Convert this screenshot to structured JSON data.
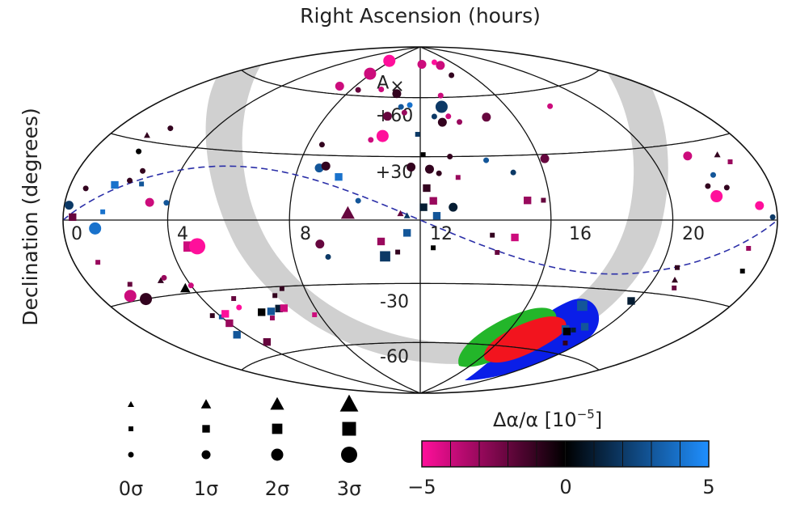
{
  "chart_data": {
    "type": "scatter",
    "projection": "aitoff-hammer (full sky)",
    "title": "Right Ascension (hours)",
    "xlabel": "Right Ascension (hours)",
    "ylabel": "Declination (degrees)",
    "ra_tick_labels": [
      "0",
      "4",
      "8",
      "12",
      "16",
      "20"
    ],
    "dec_tick_labels": [
      "+60",
      "+30",
      "-30",
      "-60"
    ],
    "xlim_hours": [
      0,
      24
    ],
    "ylim_degrees": [
      -90,
      90
    ],
    "grid": true,
    "dipole_marker": "A",
    "dipole_ra_hours": 9.5,
    "dipole_dec_deg": 68,
    "colorbar": {
      "label": "Δα/α   [10",
      "label_exp": "−5",
      "label_close": "]",
      "ticks": [
        "−5",
        "0",
        "5"
      ],
      "min": -5,
      "max": 5,
      "color_neg": "#ff0f9b",
      "color_zero": "#000000",
      "color_pos": "#1f8fff"
    },
    "size_legend": {
      "labels": [
        "0σ",
        "1σ",
        "2σ",
        "3σ"
      ],
      "marker_shapes": [
        "triangle",
        "square",
        "circle"
      ]
    },
    "galactic_band_color": "#d0d0d0",
    "ecliptic_line_color": "#2b2fa8",
    "confidence_regions": [
      {
        "level": "outer",
        "color": "#0a1ee8"
      },
      {
        "level": "middle",
        "color": "#23b62a"
      },
      {
        "level": "inner",
        "color": "#f2141e"
      }
    ],
    "points": [
      {
        "ra": 0.2,
        "dec": 5,
        "v": 2,
        "s": "circle",
        "sig": 1
      },
      {
        "ra": 0.4,
        "dec": 1,
        "v": -2,
        "s": "square",
        "sig": 1
      },
      {
        "ra": 0.7,
        "dec": 11,
        "v": -1,
        "s": "circle",
        "sig": 0
      },
      {
        "ra": 1.3,
        "dec": -3,
        "v": 4,
        "s": "circle",
        "sig": 2
      },
      {
        "ra": 1.6,
        "dec": 3,
        "v": 4,
        "s": "square",
        "sig": 0
      },
      {
        "ra": 1.0,
        "dec": -15,
        "v": -3,
        "s": "square",
        "sig": 0
      },
      {
        "ra": 1.7,
        "dec": -24,
        "v": -2,
        "s": "square",
        "sig": 0
      },
      {
        "ra": 1.3,
        "dec": -28,
        "v": -4,
        "s": "circle",
        "sig": 2
      },
      {
        "ra": 1.8,
        "dec": -30,
        "v": -1,
        "s": "circle",
        "sig": 2
      },
      {
        "ra": 1.6,
        "dec": 32,
        "v": -1,
        "s": "triangle",
        "sig": 0
      },
      {
        "ra": 1.9,
        "dec": 26,
        "v": 0,
        "s": "circle",
        "sig": 0
      },
      {
        "ra": 2.2,
        "dec": 36,
        "v": -1,
        "s": "circle",
        "sig": 0
      },
      {
        "ra": 1.8,
        "dec": 13,
        "v": 4,
        "s": "square",
        "sig": 1
      },
      {
        "ra": 2.3,
        "dec": 15,
        "v": -1,
        "s": "circle",
        "sig": 0
      },
      {
        "ra": 2.6,
        "dec": 19,
        "v": -1,
        "s": "circle",
        "sig": 0
      },
      {
        "ra": 2.8,
        "dec": 14,
        "v": 3,
        "s": "square",
        "sig": 0
      },
      {
        "ra": 3.3,
        "dec": 7,
        "v": -4,
        "s": "circle",
        "sig": 1
      },
      {
        "ra": 3.0,
        "dec": -24,
        "v": -1,
        "s": "triangle",
        "sig": 0
      },
      {
        "ra": 3.2,
        "dec": -23,
        "v": -3,
        "s": "circle",
        "sig": 0
      },
      {
        "ra": 3.9,
        "dec": 7,
        "v": 3,
        "s": "circle",
        "sig": 0
      },
      {
        "ra": 3.7,
        "dec": -28,
        "v": 0,
        "s": "triangle",
        "sig": 1
      },
      {
        "ra": 4.0,
        "dec": -27,
        "v": -4,
        "s": "circle",
        "sig": 0
      },
      {
        "ra": 3.7,
        "dec": -40,
        "v": -1,
        "s": "square",
        "sig": 0
      },
      {
        "ra": 4.0,
        "dec": -44,
        "v": -3,
        "s": "square",
        "sig": 1
      },
      {
        "ra": 3.6,
        "dec": -49,
        "v": 3,
        "s": "square",
        "sig": 1
      },
      {
        "ra": 4.0,
        "dec": -41,
        "v": 3,
        "s": "square",
        "sig": 0
      },
      {
        "ra": 4.3,
        "dec": -40,
        "v": -5,
        "s": "square",
        "sig": 1
      },
      {
        "ra": 4.4,
        "dec": -54,
        "v": -2,
        "s": "square",
        "sig": 1
      },
      {
        "ra": 4.6,
        "dec": -11,
        "v": -4,
        "s": "square",
        "sig": 2
      },
      {
        "ra": 4.9,
        "dec": -11,
        "v": -5,
        "s": "circle",
        "sig": 3
      },
      {
        "ra": 5.1,
        "dec": -38,
        "v": -5,
        "s": "circle",
        "sig": 0
      },
      {
        "ra": 5.2,
        "dec": -34,
        "v": -2,
        "s": "square",
        "sig": 0
      },
      {
        "ra": 5.8,
        "dec": -41,
        "v": 0,
        "s": "square",
        "sig": 1
      },
      {
        "ra": 6.0,
        "dec": -44,
        "v": -3,
        "s": "square",
        "sig": 0
      },
      {
        "ra": 6.2,
        "dec": -41,
        "v": 3,
        "s": "square",
        "sig": 1
      },
      {
        "ra": 6.6,
        "dec": -40,
        "v": 1,
        "s": "square",
        "sig": 1
      },
      {
        "ra": 6.8,
        "dec": -34,
        "v": -1,
        "s": "square",
        "sig": 0
      },
      {
        "ra": 6.8,
        "dec": -40,
        "v": -4,
        "s": "square",
        "sig": 1
      },
      {
        "ra": 7.2,
        "dec": -31,
        "v": -1,
        "s": "square",
        "sig": 0
      },
      {
        "ra": 7.8,
        "dec": -44,
        "v": -4,
        "s": "square",
        "sig": 0
      },
      {
        "ra": 7.1,
        "dec": 64,
        "v": -4,
        "s": "circle",
        "sig": 1
      },
      {
        "ra": 7.7,
        "dec": 80,
        "v": -5,
        "s": "circle",
        "sig": 2
      },
      {
        "ra": 7.9,
        "dec": 72,
        "v": -4,
        "s": "circle",
        "sig": 2
      },
      {
        "ra": 8.4,
        "dec": 63,
        "v": -2,
        "s": "circle",
        "sig": 0
      },
      {
        "ra": 8.5,
        "dec": 35,
        "v": -1,
        "s": "circle",
        "sig": 0
      },
      {
        "ra": 8.7,
        "dec": 24,
        "v": 3,
        "s": "circle",
        "sig": 1
      },
      {
        "ra": 8.9,
        "dec": 25,
        "v": -1,
        "s": "circle",
        "sig": 1
      },
      {
        "ra": 8.9,
        "dec": -11,
        "v": -2,
        "s": "circle",
        "sig": 1
      },
      {
        "ra": 9.1,
        "dec": -17,
        "v": 2,
        "s": "circle",
        "sig": 0
      },
      {
        "ra": 9.4,
        "dec": 20,
        "v": 4,
        "s": "square",
        "sig": 1
      },
      {
        "ra": 9.7,
        "dec": 64,
        "v": -4,
        "s": "circle",
        "sig": 0
      },
      {
        "ra": 9.8,
        "dec": 3,
        "v": -2,
        "s": "triangle",
        "sig": 2
      },
      {
        "ra": 10.1,
        "dec": 9,
        "v": 3,
        "s": "circle",
        "sig": 0
      },
      {
        "ra": 10.2,
        "dec": 38,
        "v": -4,
        "s": "circle",
        "sig": 0
      },
      {
        "ra": 10.6,
        "dec": 50,
        "v": -2,
        "s": "circle",
        "sig": 1
      },
      {
        "ra": 10.7,
        "dec": 62,
        "v": -1,
        "s": "circle",
        "sig": 1
      },
      {
        "ra": 10.6,
        "dec": 40,
        "v": -5,
        "s": "circle",
        "sig": 2
      },
      {
        "ra": 10.8,
        "dec": -10,
        "v": -3,
        "s": "square",
        "sig": 1
      },
      {
        "ra": 10.9,
        "dec": -17,
        "v": 2,
        "s": "square",
        "sig": 2
      },
      {
        "ra": 11.1,
        "dec": 55,
        "v": 3,
        "s": "circle",
        "sig": 0
      },
      {
        "ra": 11.3,
        "dec": 52,
        "v": -3,
        "s": "circle",
        "sig": 0
      },
      {
        "ra": 11.3,
        "dec": -15,
        "v": -1,
        "s": "square",
        "sig": 0
      },
      {
        "ra": 11.4,
        "dec": 3,
        "v": -2,
        "s": "triangle",
        "sig": 0
      },
      {
        "ra": 11.5,
        "dec": 56,
        "v": 4,
        "s": "circle",
        "sig": 0
      },
      {
        "ra": 11.6,
        "dec": -6,
        "v": 3,
        "s": "square",
        "sig": 1
      },
      {
        "ra": 11.7,
        "dec": 25,
        "v": -1,
        "s": "circle",
        "sig": 1
      },
      {
        "ra": 11.6,
        "dec": 2,
        "v": 2,
        "s": "triangle",
        "sig": 0
      },
      {
        "ra": 11.9,
        "dec": 41,
        "v": 2,
        "s": "square",
        "sig": 0
      },
      {
        "ra": 12.1,
        "dec": 31,
        "v": 0,
        "s": "square",
        "sig": 0
      },
      {
        "ra": 12.2,
        "dec": 79,
        "v": -4,
        "s": "circle",
        "sig": 1
      },
      {
        "ra": 12.2,
        "dec": 15,
        "v": -1,
        "s": "square",
        "sig": 1
      },
      {
        "ra": 12.1,
        "dec": 6,
        "v": 1,
        "s": "square",
        "sig": 1
      },
      {
        "ra": 12.3,
        "dec": 24,
        "v": -1,
        "s": "circle",
        "sig": 1
      },
      {
        "ra": 12.4,
        "dec": 9,
        "v": -3,
        "s": "square",
        "sig": 1
      },
      {
        "ra": 12.5,
        "dec": 2,
        "v": 3,
        "s": "square",
        "sig": 1
      },
      {
        "ra": 12.6,
        "dec": 22,
        "v": -1,
        "s": "circle",
        "sig": 0
      },
      {
        "ra": 12.4,
        "dec": -13,
        "v": 0,
        "s": "square",
        "sig": 0
      },
      {
        "ra": 12.6,
        "dec": 50,
        "v": 2,
        "s": "circle",
        "sig": 0
      },
      {
        "ra": 12.9,
        "dec": 47,
        "v": -1,
        "s": "circle",
        "sig": 1
      },
      {
        "ra": 13.1,
        "dec": 61,
        "v": -4,
        "s": "circle",
        "sig": 0
      },
      {
        "ra": 13.0,
        "dec": 55,
        "v": 2,
        "s": "circle",
        "sig": 2
      },
      {
        "ra": 13.2,
        "dec": 50,
        "v": -4,
        "s": "circle",
        "sig": 0
      },
      {
        "ra": 13.0,
        "dec": 30,
        "v": -1,
        "s": "circle",
        "sig": 0
      },
      {
        "ra": 13.2,
        "dec": 20,
        "v": -3,
        "s": "square",
        "sig": 0
      },
      {
        "ra": 13.0,
        "dec": 6,
        "v": 1,
        "s": "circle",
        "sig": 1
      },
      {
        "ra": 13.6,
        "dec": 47,
        "v": -3,
        "s": "circle",
        "sig": 0
      },
      {
        "ra": 13.9,
        "dec": 80,
        "v": -5,
        "s": "circle",
        "sig": 0
      },
      {
        "ra": 14.3,
        "dec": 78,
        "v": -4,
        "s": "circle",
        "sig": 1
      },
      {
        "ra": 14.5,
        "dec": 72,
        "v": -1,
        "s": "circle",
        "sig": 0
      },
      {
        "ra": 14.2,
        "dec": 28,
        "v": 3,
        "s": "circle",
        "sig": 0
      },
      {
        "ra": 14.2,
        "dec": -7,
        "v": -1,
        "s": "square",
        "sig": 0
      },
      {
        "ra": 14.4,
        "dec": -15,
        "v": -2,
        "s": "square",
        "sig": 0
      },
      {
        "ra": 14.8,
        "dec": 49,
        "v": -2,
        "s": "circle",
        "sig": 1
      },
      {
        "ra": 15.0,
        "dec": 22,
        "v": 2,
        "s": "circle",
        "sig": 0
      },
      {
        "ra": 14.9,
        "dec": -8,
        "v": -4,
        "s": "square",
        "sig": 1
      },
      {
        "ra": 15.3,
        "dec": 9,
        "v": -3,
        "s": "square",
        "sig": 1
      },
      {
        "ra": 15.8,
        "dec": 9,
        "v": -2,
        "s": "square",
        "sig": 0
      },
      {
        "ra": 16.2,
        "dec": 28,
        "v": -2,
        "s": "circle",
        "sig": 1
      },
      {
        "ra": 18.0,
        "dec": 52,
        "v": -4,
        "s": "circle",
        "sig": 0
      },
      {
        "ra": 18.1,
        "dec": -38,
        "v": 3,
        "s": "square",
        "sig": 2
      },
      {
        "ra": 18.4,
        "dec": -49,
        "v": 3,
        "s": "square",
        "sig": 1
      },
      {
        "ra": 18.6,
        "dec": -50,
        "v": 0,
        "s": "square",
        "sig": 1
      },
      {
        "ra": 18.8,
        "dec": -49,
        "v": 1,
        "s": "square",
        "sig": 0
      },
      {
        "ra": 19.1,
        "dec": -47,
        "v": 3,
        "s": "square",
        "sig": 1
      },
      {
        "ra": 19.3,
        "dec": -55,
        "v": -1,
        "s": "square",
        "sig": 0
      },
      {
        "ra": 19.8,
        "dec": -34,
        "v": 1,
        "s": "square",
        "sig": 1
      },
      {
        "ra": 20.6,
        "dec": -19,
        "v": -1,
        "s": "square",
        "sig": 0
      },
      {
        "ra": 20.8,
        "dec": -24,
        "v": -1,
        "s": "triangle",
        "sig": 0
      },
      {
        "ra": 21.0,
        "dec": -27,
        "v": -2,
        "s": "square",
        "sig": 0
      },
      {
        "ra": 21.4,
        "dec": 25,
        "v": -4,
        "s": "circle",
        "sig": 1
      },
      {
        "ra": 21.5,
        "dec": 13,
        "v": -1,
        "s": "circle",
        "sig": 0
      },
      {
        "ra": 21.7,
        "dec": 9,
        "v": -5,
        "s": "circle",
        "sig": 2
      },
      {
        "ra": 21.9,
        "dec": 17,
        "v": 3,
        "s": "circle",
        "sig": 0
      },
      {
        "ra": 22.2,
        "dec": 12,
        "v": -1,
        "s": "circle",
        "sig": 0
      },
      {
        "ra": 22.6,
        "dec": 24,
        "v": -1,
        "s": "triangle",
        "sig": 0
      },
      {
        "ra": 22.9,
        "dec": 21,
        "v": -3,
        "s": "square",
        "sig": 0
      },
      {
        "ra": 23.3,
        "dec": 5,
        "v": -5,
        "s": "circle",
        "sig": 1
      },
      {
        "ra": 23.8,
        "dec": 1,
        "v": 2,
        "s": "circle",
        "sig": 0
      },
      {
        "ra": 23.0,
        "dec": -10,
        "v": -3,
        "s": "square",
        "sig": 0
      },
      {
        "ra": 23.2,
        "dec": -18,
        "v": 0,
        "s": "square",
        "sig": 0
      }
    ]
  }
}
